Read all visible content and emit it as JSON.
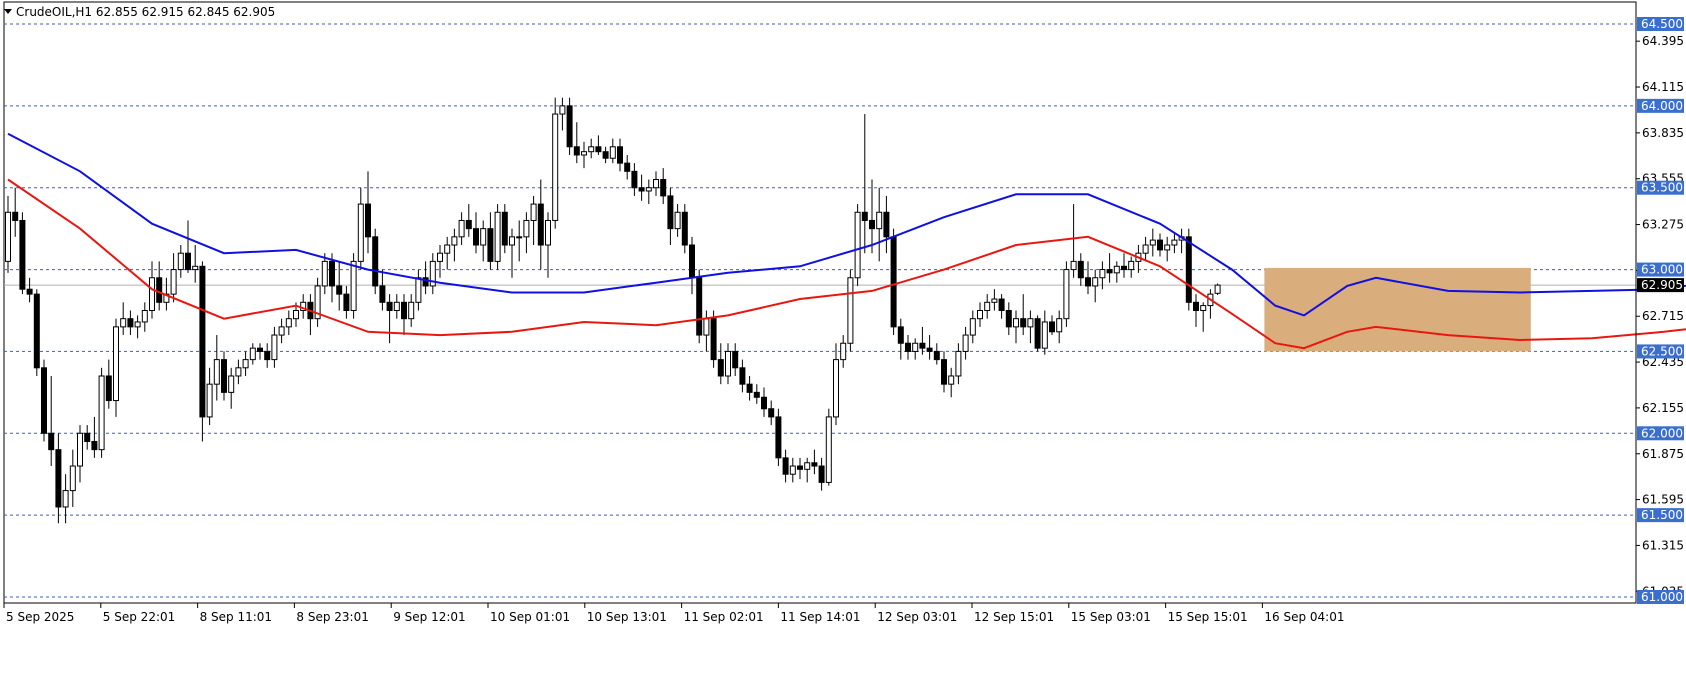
{
  "window": {
    "title": "CrudeOIL,H1  62.855 62.915 62.845 62.905"
  },
  "colors": {
    "bg": "#ffffff",
    "level_line": "#3a5fc8",
    "level_label_bg": "#3a6fd0",
    "ema_fast": "#1010e0",
    "ema_slow": "#e8170f",
    "zone_fill": "#d9ae7c",
    "current_bg": "#000000",
    "bull_candle": "#ffffff",
    "bear_candle": "#000000"
  },
  "chart_data": {
    "type": "candlestick",
    "symbol": "CrudeOIL",
    "timeframe": "H1",
    "title": "CrudeOIL,H1  62.855 62.915 62.845 62.905",
    "ohlc_header": {
      "open": 62.855,
      "high": 62.915,
      "low": 62.845,
      "close": 62.905
    },
    "current_price": 62.905,
    "ylim": [
      60.98,
      64.58
    ],
    "yticks": [
      "64.395",
      "64.115",
      "63.835",
      "63.555",
      "63.275",
      "62.995",
      "62.715",
      "62.435",
      "62.155",
      "61.875",
      "61.595",
      "61.315",
      "61.035"
    ],
    "xticks": [
      "5 Sep 2025",
      "5 Sep 22:01",
      "8 Sep 11:01",
      "8 Sep 23:01",
      "9 Sep 12:01",
      "10 Sep 01:01",
      "10 Sep 13:01",
      "11 Sep 02:01",
      "11 Sep 14:01",
      "12 Sep 03:01",
      "12 Sep 15:01",
      "15 Sep 03:01",
      "15 Sep 15:01",
      "16 Sep 04:01"
    ],
    "levels": [
      {
        "value": 64.5,
        "label": "64.500"
      },
      {
        "value": 64.0,
        "label": "64.000"
      },
      {
        "value": 63.5,
        "label": "63.500"
      },
      {
        "value": 63.0,
        "label": "63.000"
      },
      {
        "value": 62.5,
        "label": "62.500"
      },
      {
        "value": 62.0,
        "label": "62.000"
      },
      {
        "value": 61.5,
        "label": "61.500"
      },
      {
        "value": 61.0,
        "label": "61.000"
      }
    ],
    "zone": {
      "bar_start": 175,
      "bar_end": 212,
      "top": 63.01,
      "bottom": 62.5
    },
    "candles": [
      [
        63.05,
        63.45,
        62.98,
        63.35
      ],
      [
        63.35,
        63.5,
        63.2,
        63.3
      ],
      [
        63.3,
        63.35,
        62.85,
        62.88
      ],
      [
        62.88,
        62.95,
        62.8,
        62.85
      ],
      [
        62.85,
        62.88,
        62.35,
        62.4
      ],
      [
        62.4,
        62.45,
        61.95,
        62.0
      ],
      [
        62.0,
        62.35,
        61.8,
        61.9
      ],
      [
        61.9,
        62.0,
        61.45,
        61.55
      ],
      [
        61.55,
        61.75,
        61.45,
        61.65
      ],
      [
        61.65,
        61.9,
        61.55,
        61.8
      ],
      [
        61.8,
        62.05,
        61.7,
        62.0
      ],
      [
        62.0,
        62.05,
        61.9,
        61.95
      ],
      [
        61.95,
        62.1,
        61.85,
        61.9
      ],
      [
        61.9,
        62.4,
        61.85,
        62.35
      ],
      [
        62.35,
        62.45,
        62.15,
        62.2
      ],
      [
        62.2,
        62.7,
        62.1,
        62.65
      ],
      [
        62.65,
        62.8,
        62.6,
        62.7
      ],
      [
        62.7,
        62.75,
        62.6,
        62.65
      ],
      [
        62.65,
        62.72,
        62.58,
        62.68
      ],
      [
        62.68,
        62.8,
        62.62,
        62.75
      ],
      [
        62.75,
        63.05,
        62.7,
        62.95
      ],
      [
        62.95,
        63.05,
        62.75,
        62.8
      ],
      [
        62.8,
        62.95,
        62.75,
        62.85
      ],
      [
        62.85,
        63.1,
        62.8,
        63.0
      ],
      [
        63.0,
        63.15,
        62.95,
        63.1
      ],
      [
        63.1,
        63.3,
        62.98,
        63.0
      ],
      [
        63.0,
        63.15,
        62.92,
        63.02
      ],
      [
        63.02,
        63.05,
        61.95,
        62.1
      ],
      [
        62.1,
        62.4,
        62.05,
        62.3
      ],
      [
        62.3,
        62.6,
        62.2,
        62.45
      ],
      [
        62.45,
        62.5,
        62.2,
        62.25
      ],
      [
        62.25,
        62.4,
        62.15,
        62.35
      ],
      [
        62.35,
        62.45,
        62.3,
        62.4
      ],
      [
        62.4,
        62.5,
        62.35,
        62.45
      ],
      [
        62.45,
        62.55,
        62.42,
        62.52
      ],
      [
        62.52,
        62.55,
        62.45,
        62.5
      ],
      [
        62.5,
        62.55,
        62.4,
        62.45
      ],
      [
        62.45,
        62.65,
        62.4,
        62.6
      ],
      [
        62.6,
        62.7,
        62.55,
        62.65
      ],
      [
        62.65,
        62.75,
        62.6,
        62.7
      ],
      [
        62.7,
        62.8,
        62.65,
        62.75
      ],
      [
        62.75,
        62.85,
        62.7,
        62.8
      ],
      [
        62.8,
        62.85,
        62.6,
        62.7
      ],
      [
        62.7,
        62.95,
        62.65,
        62.9
      ],
      [
        62.9,
        63.1,
        62.85,
        63.05
      ],
      [
        63.05,
        63.1,
        62.8,
        62.9
      ],
      [
        62.9,
        63.05,
        62.75,
        62.85
      ],
      [
        62.85,
        62.9,
        62.7,
        62.75
      ],
      [
        62.75,
        63.1,
        62.7,
        63.05
      ],
      [
        63.05,
        63.5,
        63.0,
        63.4
      ],
      [
        63.4,
        63.6,
        63.1,
        63.2
      ],
      [
        63.2,
        63.25,
        62.85,
        62.9
      ],
      [
        62.9,
        63.0,
        62.75,
        62.8
      ],
      [
        62.8,
        62.85,
        62.55,
        62.75
      ],
      [
        62.75,
        62.85,
        62.7,
        62.8
      ],
      [
        62.8,
        62.85,
        62.6,
        62.7
      ],
      [
        62.7,
        62.85,
        62.65,
        62.8
      ],
      [
        62.8,
        63.0,
        62.75,
        62.95
      ],
      [
        62.95,
        63.05,
        62.85,
        62.9
      ],
      [
        62.9,
        63.1,
        62.85,
        63.05
      ],
      [
        63.05,
        63.15,
        62.95,
        63.1
      ],
      [
        63.1,
        63.2,
        63.0,
        63.15
      ],
      [
        63.15,
        63.25,
        63.05,
        63.2
      ],
      [
        63.2,
        63.35,
        63.15,
        63.3
      ],
      [
        63.3,
        63.4,
        63.2,
        63.25
      ],
      [
        63.25,
        63.35,
        63.1,
        63.15
      ],
      [
        63.15,
        63.3,
        63.05,
        63.25
      ],
      [
        63.25,
        63.35,
        63.0,
        63.05
      ],
      [
        63.05,
        63.4,
        63.0,
        63.35
      ],
      [
        63.35,
        63.4,
        63.1,
        63.15
      ],
      [
        63.15,
        63.25,
        62.95,
        63.2
      ],
      [
        63.2,
        63.3,
        63.05,
        63.2
      ],
      [
        63.2,
        63.35,
        63.1,
        63.3
      ],
      [
        63.3,
        63.45,
        63.15,
        63.4
      ],
      [
        63.4,
        63.55,
        63.0,
        63.15
      ],
      [
        63.15,
        63.35,
        62.95,
        63.3
      ],
      [
        63.3,
        64.05,
        63.25,
        63.95
      ],
      [
        63.95,
        64.05,
        63.85,
        64.0
      ],
      [
        64.0,
        64.05,
        63.7,
        63.75
      ],
      [
        63.75,
        63.9,
        63.65,
        63.7
      ],
      [
        63.7,
        63.78,
        63.62,
        63.72
      ],
      [
        63.72,
        63.8,
        63.68,
        63.75
      ],
      [
        63.75,
        63.82,
        63.7,
        63.72
      ],
      [
        63.72,
        63.75,
        63.65,
        63.68
      ],
      [
        63.68,
        63.8,
        63.65,
        63.75
      ],
      [
        63.75,
        63.8,
        63.6,
        63.65
      ],
      [
        63.65,
        63.7,
        63.55,
        63.6
      ],
      [
        63.6,
        63.65,
        63.45,
        63.5
      ],
      [
        63.5,
        63.58,
        63.42,
        63.48
      ],
      [
        63.48,
        63.55,
        63.4,
        63.5
      ],
      [
        63.5,
        63.6,
        63.45,
        63.55
      ],
      [
        63.55,
        63.62,
        63.4,
        63.45
      ],
      [
        63.45,
        63.5,
        63.15,
        63.25
      ],
      [
        63.25,
        63.4,
        63.2,
        63.35
      ],
      [
        63.35,
        63.4,
        63.1,
        63.15
      ],
      [
        63.15,
        63.2,
        62.85,
        62.95
      ],
      [
        62.95,
        63.0,
        62.55,
        62.6
      ],
      [
        62.6,
        62.75,
        62.5,
        62.7
      ],
      [
        62.7,
        62.75,
        62.4,
        62.45
      ],
      [
        62.45,
        62.55,
        62.3,
        62.35
      ],
      [
        62.35,
        62.55,
        62.3,
        62.5
      ],
      [
        62.5,
        62.55,
        62.35,
        62.4
      ],
      [
        62.4,
        62.45,
        62.25,
        62.3
      ],
      [
        62.3,
        62.35,
        62.2,
        62.25
      ],
      [
        62.25,
        62.3,
        62.18,
        62.22
      ],
      [
        62.22,
        62.28,
        62.1,
        62.15
      ],
      [
        62.15,
        62.2,
        62.05,
        62.1
      ],
      [
        62.1,
        62.15,
        61.8,
        61.85
      ],
      [
        61.85,
        61.9,
        61.7,
        61.75
      ],
      [
        61.75,
        61.85,
        61.7,
        61.8
      ],
      [
        61.8,
        61.85,
        61.72,
        61.78
      ],
      [
        61.78,
        61.85,
        61.7,
        61.82
      ],
      [
        61.82,
        61.9,
        61.75,
        61.8
      ],
      [
        61.8,
        61.85,
        61.65,
        61.7
      ],
      [
        61.7,
        62.15,
        61.68,
        62.1
      ],
      [
        62.1,
        62.55,
        62.05,
        62.45
      ],
      [
        62.45,
        62.6,
        62.4,
        62.55
      ],
      [
        62.55,
        63.0,
        62.5,
        62.95
      ],
      [
        62.95,
        63.4,
        62.9,
        63.35
      ],
      [
        63.35,
        63.95,
        63.1,
        63.3
      ],
      [
        63.3,
        63.55,
        63.1,
        63.25
      ],
      [
        63.25,
        63.5,
        63.05,
        63.35
      ],
      [
        63.35,
        63.45,
        63.1,
        63.2
      ],
      [
        63.2,
        63.25,
        62.6,
        62.65
      ],
      [
        62.65,
        62.7,
        62.45,
        62.55
      ],
      [
        62.55,
        62.6,
        62.45,
        62.5
      ],
      [
        62.5,
        62.58,
        62.45,
        62.55
      ],
      [
        62.55,
        62.65,
        62.48,
        62.52
      ],
      [
        62.52,
        62.6,
        62.45,
        62.5
      ],
      [
        62.5,
        62.55,
        62.42,
        62.45
      ],
      [
        62.45,
        62.5,
        62.25,
        62.3
      ],
      [
        62.3,
        62.4,
        62.22,
        62.35
      ],
      [
        62.35,
        62.55,
        62.3,
        62.5
      ],
      [
        62.5,
        62.65,
        62.45,
        62.6
      ],
      [
        62.6,
        62.75,
        62.55,
        62.7
      ],
      [
        62.7,
        62.8,
        62.65,
        62.75
      ],
      [
        62.75,
        62.85,
        62.7,
        62.8
      ],
      [
        62.8,
        62.88,
        62.75,
        62.82
      ],
      [
        62.82,
        62.85,
        62.7,
        62.75
      ],
      [
        62.75,
        62.8,
        62.6,
        62.65
      ],
      [
        62.65,
        62.75,
        62.55,
        62.7
      ],
      [
        62.7,
        62.85,
        62.6,
        62.65
      ],
      [
        62.65,
        62.75,
        62.55,
        62.7
      ],
      [
        62.7,
        62.72,
        62.5,
        62.52
      ],
      [
        62.52,
        62.75,
        62.48,
        62.68
      ],
      [
        62.68,
        62.72,
        62.6,
        62.62
      ],
      [
        62.62,
        62.75,
        62.55,
        62.7
      ],
      [
        62.7,
        63.05,
        62.65,
        63.0
      ],
      [
        63.0,
        63.4,
        62.95,
        63.05
      ],
      [
        63.05,
        63.1,
        62.9,
        62.95
      ],
      [
        62.95,
        63.05,
        62.85,
        62.9
      ],
      [
        62.9,
        63.0,
        62.8,
        62.95
      ],
      [
        62.95,
        63.05,
        62.88,
        63.0
      ],
      [
        63.0,
        63.1,
        62.92,
        62.98
      ],
      [
        62.98,
        63.05,
        62.92,
        63.02
      ],
      [
        63.02,
        63.1,
        62.95,
        63.0
      ],
      [
        63.0,
        63.08,
        62.95,
        63.05
      ],
      [
        63.05,
        63.15,
        62.98,
        63.1
      ],
      [
        63.1,
        63.2,
        63.05,
        63.15
      ],
      [
        63.15,
        63.25,
        63.08,
        63.18
      ],
      [
        63.18,
        63.22,
        63.08,
        63.12
      ],
      [
        63.12,
        63.2,
        63.05,
        63.15
      ],
      [
        63.15,
        63.22,
        63.1,
        63.18
      ],
      [
        63.18,
        63.25,
        63.1,
        63.2
      ],
      [
        63.2,
        63.25,
        62.75,
        62.8
      ],
      [
        62.8,
        62.85,
        62.65,
        62.75
      ],
      [
        62.75,
        62.8,
        62.62,
        62.78
      ],
      [
        62.78,
        62.88,
        62.7,
        62.85
      ],
      [
        62.855,
        62.915,
        62.845,
        62.905
      ]
    ],
    "ema_fast": [
      [
        0,
        63.83
      ],
      [
        10,
        63.6
      ],
      [
        20,
        63.28
      ],
      [
        30,
        63.1
      ],
      [
        40,
        63.12
      ],
      [
        50,
        63.0
      ],
      [
        60,
        62.92
      ],
      [
        70,
        62.86
      ],
      [
        80,
        62.86
      ],
      [
        90,
        62.92
      ],
      [
        100,
        62.98
      ],
      [
        110,
        63.02
      ],
      [
        120,
        63.15
      ],
      [
        130,
        63.32
      ],
      [
        140,
        63.46
      ],
      [
        150,
        63.46
      ],
      [
        160,
        63.28
      ],
      [
        170,
        63.0
      ],
      [
        176,
        62.78
      ],
      [
        180,
        62.72
      ],
      [
        186,
        62.9
      ],
      [
        190,
        62.95
      ],
      [
        200,
        62.87
      ],
      [
        210,
        62.86
      ],
      [
        220,
        62.87
      ],
      [
        230,
        62.88
      ],
      [
        240,
        62.95
      ],
      [
        250,
        63.06
      ],
      [
        256,
        63.1
      ],
      [
        262,
        62.99
      ]
    ],
    "ema_slow": [
      [
        0,
        63.55
      ],
      [
        10,
        63.25
      ],
      [
        20,
        62.88
      ],
      [
        30,
        62.7
      ],
      [
        40,
        62.78
      ],
      [
        50,
        62.62
      ],
      [
        60,
        62.6
      ],
      [
        70,
        62.62
      ],
      [
        80,
        62.68
      ],
      [
        90,
        62.66
      ],
      [
        100,
        62.72
      ],
      [
        110,
        62.82
      ],
      [
        120,
        62.87
      ],
      [
        130,
        63.0
      ],
      [
        140,
        63.15
      ],
      [
        150,
        63.2
      ],
      [
        160,
        63.02
      ],
      [
        170,
        62.73
      ],
      [
        176,
        62.55
      ],
      [
        180,
        62.52
      ],
      [
        186,
        62.62
      ],
      [
        190,
        62.65
      ],
      [
        200,
        62.6
      ],
      [
        210,
        62.57
      ],
      [
        220,
        62.58
      ],
      [
        230,
        62.62
      ],
      [
        240,
        62.67
      ],
      [
        250,
        62.72
      ],
      [
        256,
        62.75
      ],
      [
        262,
        62.74
      ]
    ]
  }
}
